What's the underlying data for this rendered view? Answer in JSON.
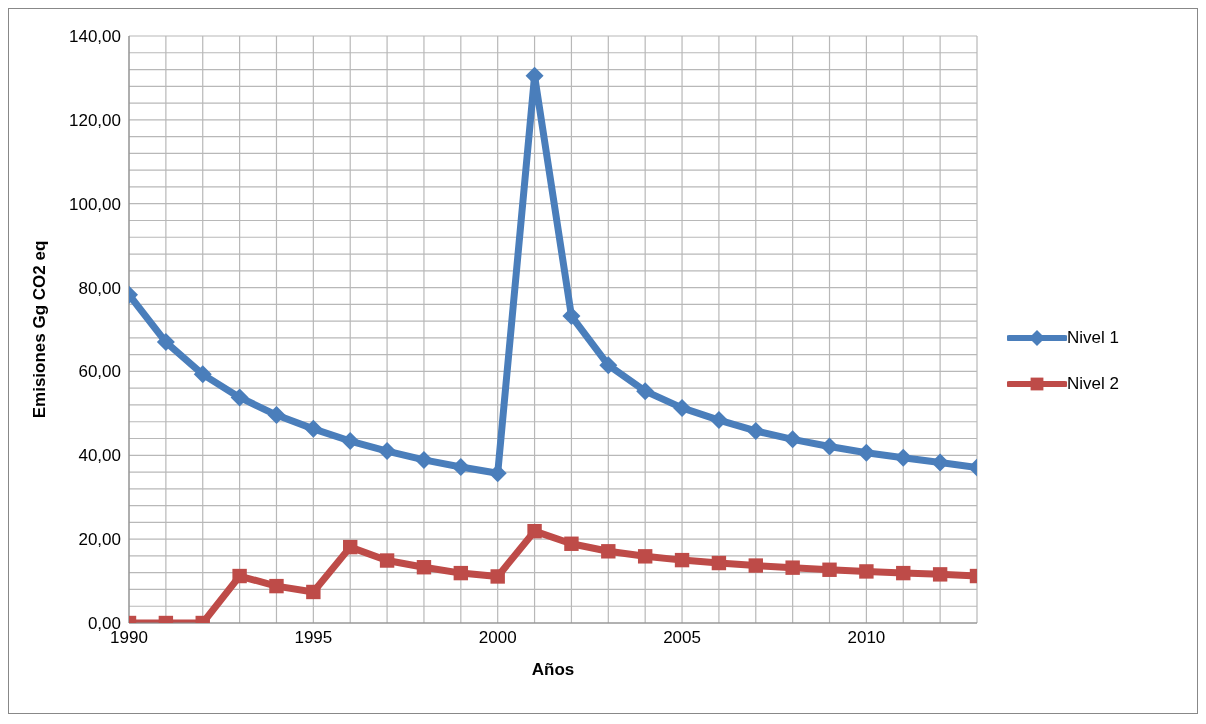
{
  "chart_data": {
    "type": "line",
    "xlabel": "Años",
    "ylabel": "Emisiones Gg CO2 eq",
    "x": [
      1990,
      1991,
      1992,
      1993,
      1994,
      1995,
      1996,
      1997,
      1998,
      1999,
      2000,
      2001,
      2002,
      2003,
      2004,
      2005,
      2006,
      2007,
      2008,
      2009,
      2010,
      2011,
      2012,
      2013
    ],
    "series": [
      {
        "name": "Nivel 1",
        "color": "#4a7ebb",
        "marker": "diamond",
        "values": [
          78.3,
          67,
          59.3,
          53.8,
          49.6,
          46.3,
          43.4,
          41,
          38.9,
          37.2,
          35.7,
          130.5,
          73.2,
          61.5,
          55.3,
          51.3,
          48.4,
          45.8,
          43.8,
          42.1,
          40.6,
          39.4,
          38.3,
          37.1
        ]
      },
      {
        "name": "Nivel 2",
        "color": "#be4b48",
        "marker": "square",
        "values": [
          0,
          0,
          0,
          11.2,
          8.8,
          7.4,
          18.1,
          14.9,
          13.3,
          11.9,
          11.1,
          21.9,
          18.9,
          17.1,
          15.9,
          15,
          14.3,
          13.7,
          13.2,
          12.7,
          12.3,
          11.9,
          11.6,
          11.2
        ]
      }
    ],
    "xlim": [
      1990,
      2013
    ],
    "xticks": [
      1990,
      {
        "value": 1991,
        "label": null
      },
      {
        "value": 1992,
        "label": null
      },
      {
        "value": 1993,
        "label": null
      },
      {
        "value": 1994,
        "label": null
      },
      1995,
      {
        "value": 1996,
        "label": null
      },
      {
        "value": 1997,
        "label": null
      },
      {
        "value": 1998,
        "label": null
      },
      {
        "value": 1999,
        "label": null
      },
      2000,
      {
        "value": 2001,
        "label": null
      },
      {
        "value": 2002,
        "label": null
      },
      {
        "value": 2003,
        "label": null
      },
      {
        "value": 2004,
        "label": null
      },
      2005,
      {
        "value": 2006,
        "label": null
      },
      {
        "value": 2007,
        "label": null
      },
      {
        "value": 2008,
        "label": null
      },
      {
        "value": 2009,
        "label": null
      },
      2010,
      {
        "value": 2011,
        "label": null
      },
      {
        "value": 2012,
        "label": null
      },
      {
        "value": 2013,
        "label": null
      }
    ],
    "ylim": [
      0,
      140
    ],
    "yticks": [
      {
        "value": 0,
        "label": "0,00"
      },
      {
        "value": 4,
        "label": null
      },
      {
        "value": 8,
        "label": null
      },
      {
        "value": 12,
        "label": null
      },
      {
        "value": 16,
        "label": null
      },
      {
        "value": 20,
        "label": "20,00"
      },
      {
        "value": 24,
        "label": null
      },
      {
        "value": 28,
        "label": null
      },
      {
        "value": 32,
        "label": null
      },
      {
        "value": 36,
        "label": null
      },
      {
        "value": 40,
        "label": "40,00"
      },
      {
        "value": 44,
        "label": null
      },
      {
        "value": 48,
        "label": null
      },
      {
        "value": 52,
        "label": null
      },
      {
        "value": 56,
        "label": null
      },
      {
        "value": 60,
        "label": "60,00"
      },
      {
        "value": 64,
        "label": null
      },
      {
        "value": 68,
        "label": null
      },
      {
        "value": 72,
        "label": null
      },
      {
        "value": 76,
        "label": null
      },
      {
        "value": 80,
        "label": "80,00"
      },
      {
        "value": 84,
        "label": null
      },
      {
        "value": 88,
        "label": null
      },
      {
        "value": 92,
        "label": null
      },
      {
        "value": 96,
        "label": null
      },
      {
        "value": 100,
        "label": "100,00"
      },
      {
        "value": 104,
        "label": null
      },
      {
        "value": 108,
        "label": null
      },
      {
        "value": 112,
        "label": null
      },
      {
        "value": 116,
        "label": null
      },
      {
        "value": 120,
        "label": "120,00"
      },
      {
        "value": 124,
        "label": null
      },
      {
        "value": 128,
        "label": null
      },
      {
        "value": 132,
        "label": null
      },
      {
        "value": 136,
        "label": null
      },
      {
        "value": 140,
        "label": "140,00"
      }
    ],
    "grid": true,
    "legend": "right",
    "line_style": "solid"
  }
}
